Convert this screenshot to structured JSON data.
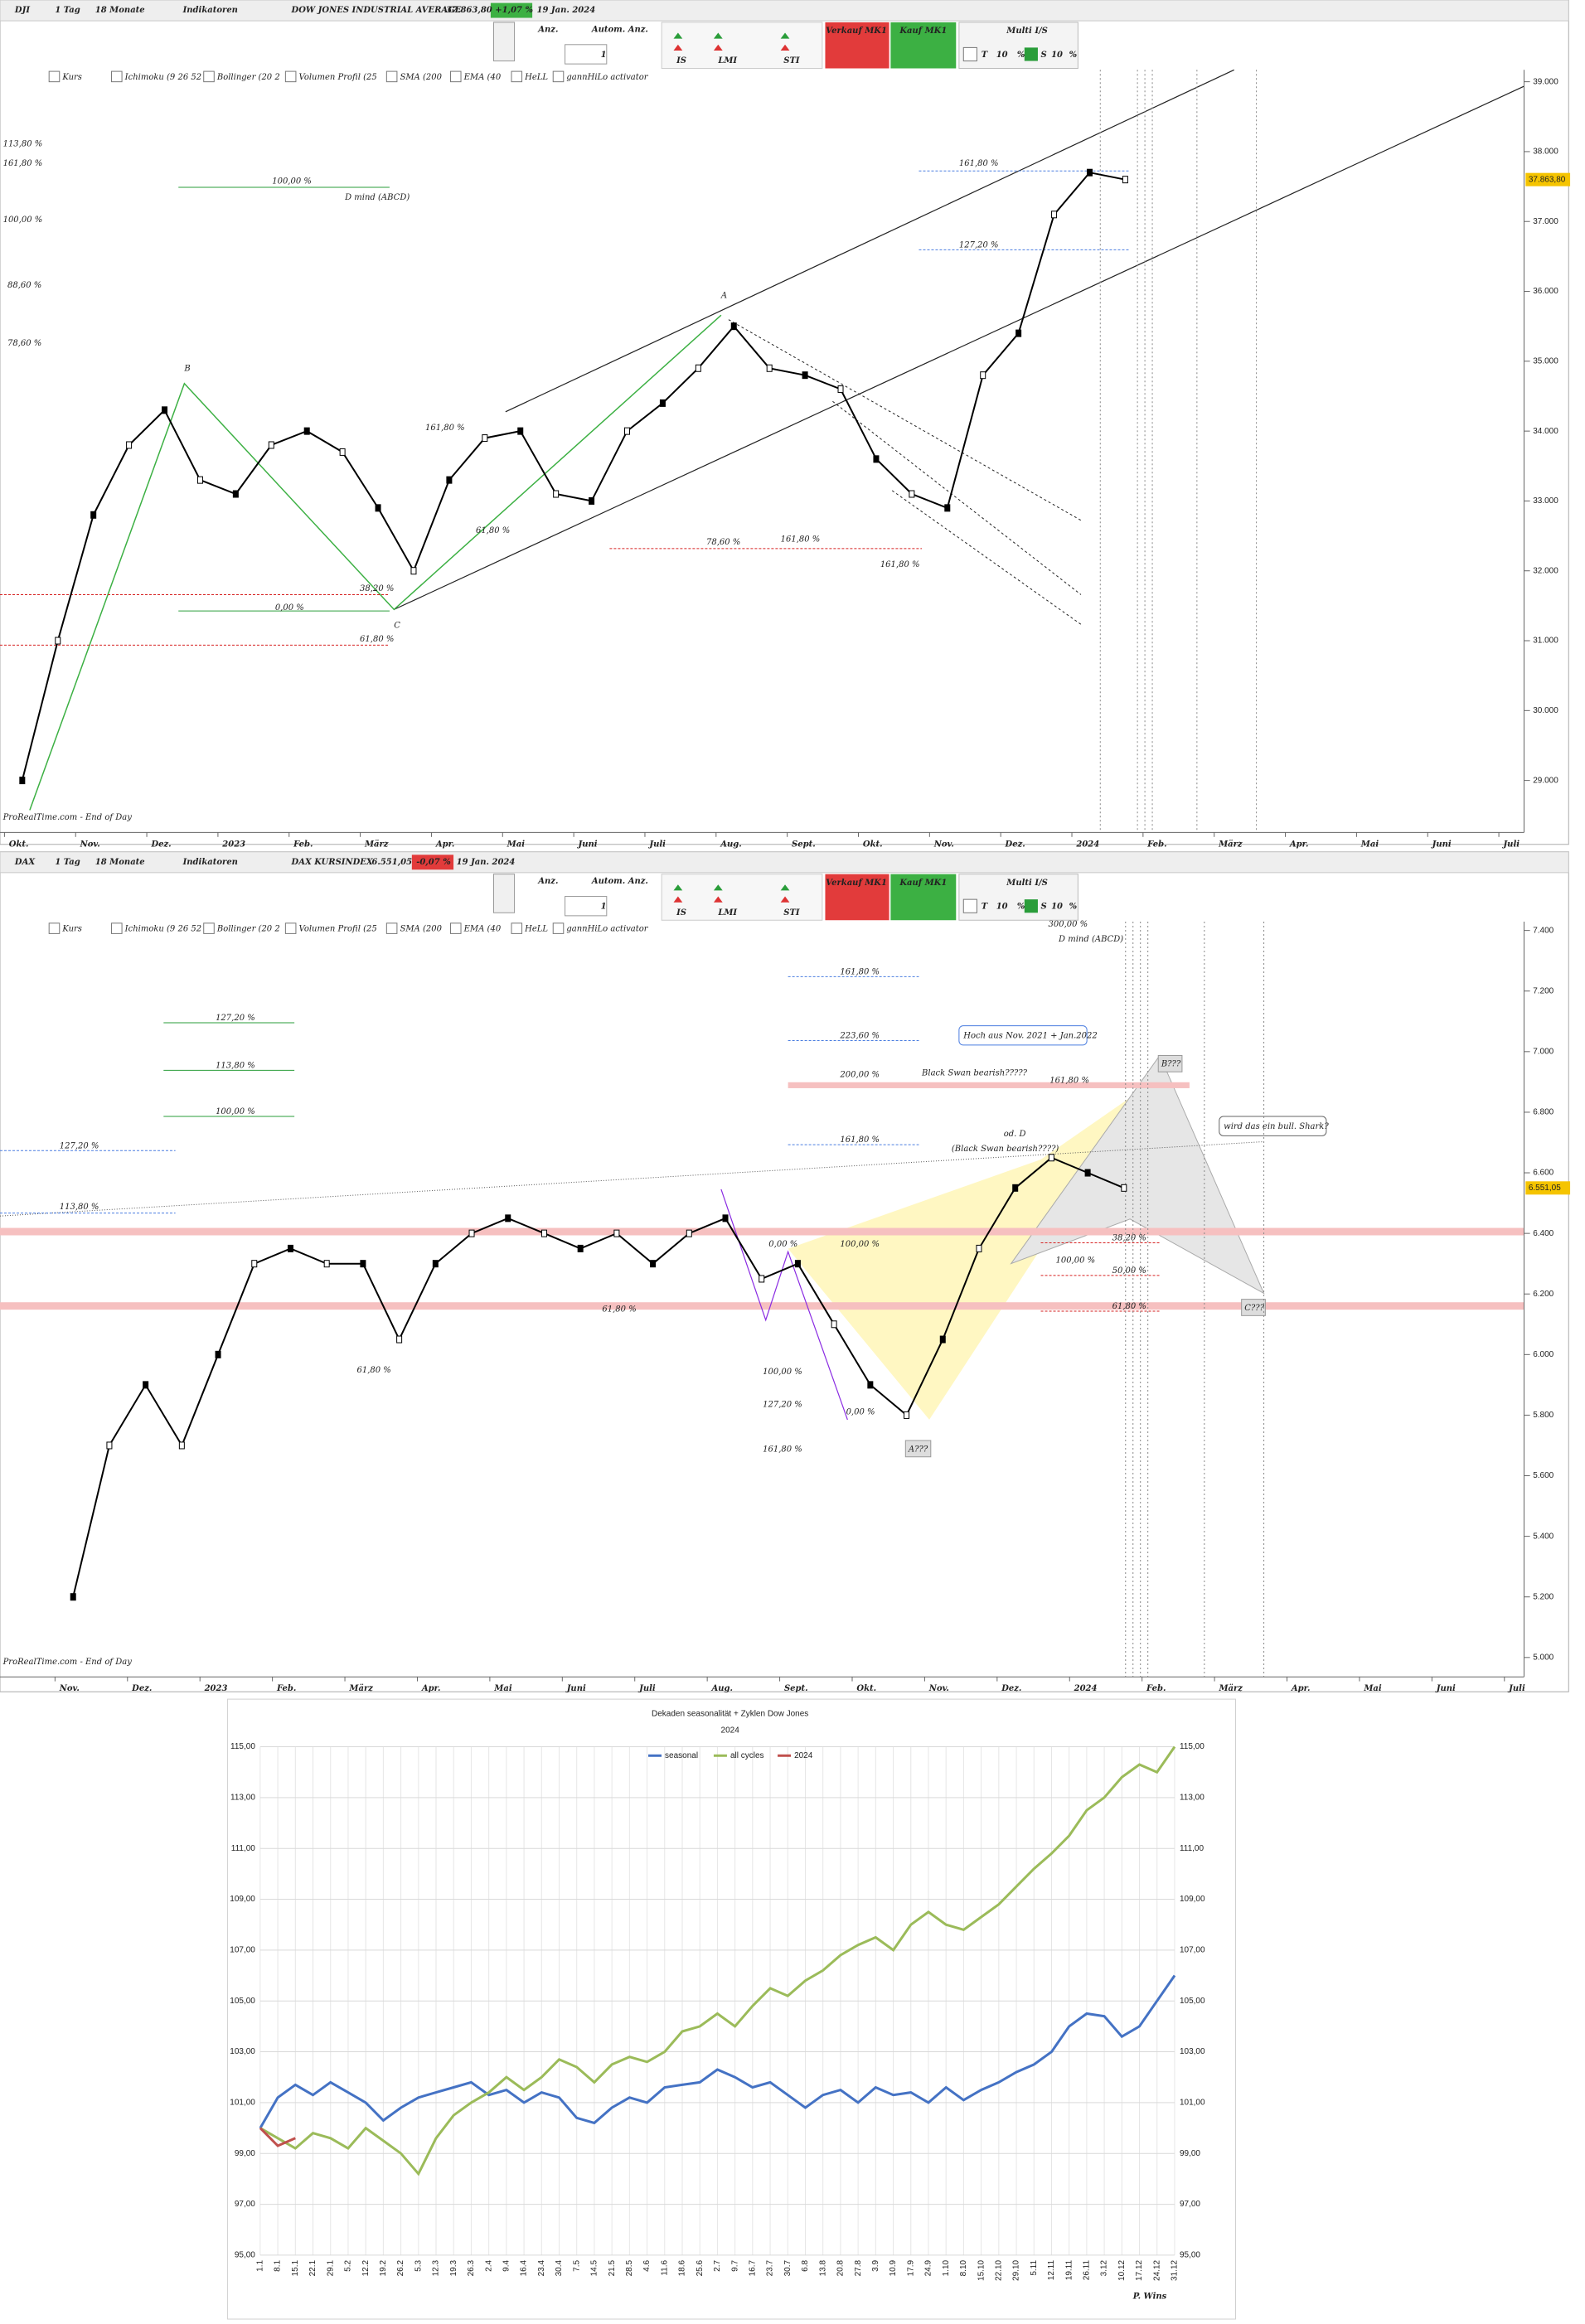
{
  "chart_data": [
    {
      "type": "line",
      "toolbar": {
        "symbol": "DJI",
        "period": "1 Tag",
        "range": "18 Monate",
        "indicators_button": "Indikatoren",
        "instrument": "DOW JONES INDUSTRIAL AVERAGE",
        "last": "37.863,80",
        "change": "+1,07 %",
        "date": "19 Jan. 2024",
        "controls": [
          "Anz.",
          "Autom. Anz.",
          "1",
          "IS",
          "LMI",
          "STI"
        ],
        "sell": "Verkauf MK1",
        "buy": "Kauf MK1",
        "multi": "Multi I/S",
        "t": "T",
        "t_value": "10",
        "s": "S",
        "s_value": "10",
        "percent": "%"
      },
      "indicators": [
        "Kurs",
        "Ichimoku (9 26 52",
        "Bollinger (20 2",
        "Volumen Profil (25",
        "SMA (200",
        "EMA (40",
        "HeLL",
        "gannHiLo activator"
      ],
      "price_tag": "37.863,80",
      "watermark": "ProRealTime.com - End of Day",
      "annotations": [
        "113,80 %",
        "161,80 %",
        "100,00 %",
        "88,60 %",
        "78,60 %",
        "100,00 %",
        "D mind (ABCD)",
        "161,80 %",
        "0,00 %",
        "38,20 %",
        "61,80 %",
        "61,80 %",
        "78,60 %",
        "161,80 %",
        "161,80 %",
        "127,20 %",
        "161,80 %",
        "B",
        "C",
        "A"
      ],
      "categories": [
        "Okt.",
        null,
        "Nov.",
        null,
        "Dez.",
        null,
        "2023",
        null,
        "Feb.",
        null,
        "März",
        null,
        "Apr.",
        null,
        "Mai",
        null,
        "Juni",
        null,
        "Juli",
        null,
        "Aug.",
        null,
        "Sept.",
        null,
        "Okt.",
        null,
        "Nov.",
        null,
        "Dez.",
        null,
        "2024",
        null,
        "Feb.",
        null,
        "März",
        null,
        "Apr.",
        null,
        "Mai",
        null,
        "Juni",
        null,
        "Juli",
        null
      ],
      "values": [
        29000,
        31000,
        32800,
        33800,
        34300,
        33300,
        33100,
        33800,
        34000,
        33700,
        32900,
        32000,
        33300,
        33900,
        34000,
        33100,
        33000,
        34000,
        34400,
        34900,
        35500,
        34900,
        34800,
        34600,
        33600,
        33100,
        32900,
        34800,
        35400,
        37100,
        37700,
        37600,
        null,
        null,
        null,
        null,
        null,
        null,
        null,
        null,
        null,
        null,
        null,
        null
      ],
      "color": "#000000",
      "ylim": [
        28255,
        39170
      ],
      "yticks": [
        {
          "value": 29000,
          "label": "29.000"
        },
        {
          "value": 30000,
          "label": "30.000"
        },
        {
          "value": 31000,
          "label": "31.000"
        },
        {
          "value": 32000,
          "label": "32.000"
        },
        {
          "value": 33000,
          "label": "33.000"
        },
        {
          "value": 34000,
          "label": "34.000"
        },
        {
          "value": 35000,
          "label": "35.000"
        },
        {
          "value": 36000,
          "label": "36.000"
        },
        {
          "value": 37000,
          "label": "37.000"
        },
        {
          "value": 38000,
          "label": "38.000"
        },
        {
          "value": 39000,
          "label": "39.000"
        }
      ]
    },
    {
      "type": "line",
      "toolbar": {
        "symbol": "DAX",
        "period": "1 Tag",
        "range": "18 Monate",
        "indicators_button": "Indikatoren",
        "instrument": "DAX KURSINDEX",
        "last": "6.551,05",
        "change": "-0,07 %",
        "date": "19 Jan. 2024",
        "controls": [
          "Anz.",
          "Autom. Anz.",
          "1",
          "IS",
          "LMI",
          "STI"
        ],
        "sell": "Verkauf MK1",
        "buy": "Kauf MK1",
        "multi": "Multi I/S",
        "t": "T",
        "t_value": "10",
        "s": "S",
        "s_value": "10",
        "percent": "%"
      },
      "indicators": [
        "Kurs",
        "Ichimoku (9 26 52",
        "Bollinger (20 2",
        "Volumen Profil (25",
        "SMA (200",
        "EMA (40",
        "HeLL",
        "gannHiLo activator"
      ],
      "price_tag": "6.551,05",
      "watermark": "ProRealTime.com - End of Day",
      "annotations": [
        "161,80 %",
        "223,60 %",
        "200,00 %",
        "161,80 %",
        "127,20 %",
        "113,80 %",
        "100,00 %",
        "127,20 %",
        "113,80 %",
        "Hoch aus Nov. 2021 + Jan.2022",
        "Black Swan bearish?????",
        "161,80 %",
        "od. D",
        "(Black Swan bearish????)",
        "wird das ein bull. Shark?",
        "B???",
        "C???",
        "A???",
        "38,20 %",
        "50,00 %",
        "61,80 %",
        "100,00 %",
        "100,00 %",
        "0,00 %",
        "61,80 %",
        "61,80 %",
        "100,00 %",
        "127,20 %",
        "161,80 %",
        "0,00 %",
        "300,00 %",
        "D mind (ABCD)"
      ],
      "categories": [
        "Nov.",
        null,
        "Dez.",
        null,
        "2023",
        null,
        "Feb.",
        null,
        "März",
        null,
        "Apr.",
        null,
        "Mai",
        null,
        "Juni",
        null,
        "Juli",
        null,
        "Aug.",
        null,
        "Sept.",
        null,
        "Okt.",
        null,
        "Nov.",
        null,
        "Dez.",
        null,
        "2024",
        null,
        "Feb.",
        null,
        "März",
        null,
        "Apr.",
        null,
        "Mai",
        null,
        "Juni",
        null,
        "Juli",
        null
      ],
      "values": [
        5200,
        5700,
        5900,
        5700,
        6000,
        6300,
        6350,
        6300,
        6300,
        6050,
        6300,
        6400,
        6450,
        6400,
        6350,
        6400,
        6300,
        6400,
        6450,
        6250,
        6300,
        6100,
        5900,
        5800,
        6050,
        6350,
        6550,
        6650,
        6600,
        6550,
        null,
        null,
        null,
        null,
        null,
        null,
        null,
        null,
        null,
        null,
        null,
        null
      ],
      "color": "#000000",
      "ylim": [
        4936,
        7429
      ],
      "yticks": [
        {
          "value": 5000,
          "label": "5.000"
        },
        {
          "value": 5200,
          "label": "5.200"
        },
        {
          "value": 5400,
          "label": "5.400"
        },
        {
          "value": 5600,
          "label": "5.600"
        },
        {
          "value": 5800,
          "label": "5.800"
        },
        {
          "value": 6000,
          "label": "6.000"
        },
        {
          "value": 6200,
          "label": "6.200"
        },
        {
          "value": 6400,
          "label": "6.400"
        },
        {
          "value": 6600,
          "label": "6.600"
        },
        {
          "value": 6800,
          "label": "6.800"
        },
        {
          "value": 7000,
          "label": "7.000"
        },
        {
          "value": 7200,
          "label": "7.200"
        },
        {
          "value": 7400,
          "label": "7.400"
        }
      ]
    },
    {
      "type": "line",
      "title": "Dekaden seasonalität + Zyklen Dow Jones",
      "subtitle": "2024",
      "footer": "P. Wins",
      "legend": "top",
      "grid": true,
      "categories": [
        "1.1",
        "8.1",
        "15.1",
        "22.1",
        "29.1",
        "5.2",
        "12.2",
        "19.2",
        "26.2",
        "5.3",
        "12.3",
        "19.3",
        "26.3",
        "2.4",
        "9.4",
        "16.4",
        "23.4",
        "30.4",
        "7.5",
        "14.5",
        "21.5",
        "28.5",
        "4.6",
        "11.6",
        "18.6",
        "25.6",
        "2.7",
        "9.7",
        "16.7",
        "23.7",
        "30.7",
        "6.8",
        "13.8",
        "20.8",
        "27.8",
        "3.9",
        "10.9",
        "17.9",
        "24.9",
        "1.10",
        "8.10",
        "15.10",
        "22.10",
        "29.10",
        "5.11",
        "12.11",
        "19.11",
        "26.11",
        "3.12",
        "10.12",
        "17.12",
        "24.12",
        "31.12"
      ],
      "series": [
        {
          "name": "seasonal",
          "color": "#4472c4",
          "values": [
            100,
            101.2,
            101.7,
            101.3,
            101.8,
            101.4,
            101.0,
            100.3,
            100.8,
            101.2,
            101.4,
            101.6,
            101.8,
            101.3,
            101.5,
            101.0,
            101.4,
            101.2,
            100.4,
            100.2,
            100.8,
            101.2,
            101.0,
            101.6,
            101.7,
            101.8,
            102.3,
            102.0,
            101.6,
            101.8,
            101.3,
            100.8,
            101.3,
            101.5,
            101.0,
            101.6,
            101.3,
            101.4,
            101.0,
            101.6,
            101.1,
            101.5,
            101.8,
            102.2,
            102.5,
            103.0,
            104.0,
            104.5,
            104.4,
            103.6,
            104.0,
            105.0,
            106.0
          ]
        },
        {
          "name": "all cycles",
          "color": "#9bbb59",
          "values": [
            100.0,
            99.6,
            99.2,
            99.8,
            99.6,
            99.2,
            100.0,
            99.5,
            99.0,
            98.2,
            99.6,
            100.5,
            101.0,
            101.4,
            102.0,
            101.5,
            102.0,
            102.7,
            102.4,
            101.8,
            102.5,
            102.8,
            102.6,
            103.0,
            103.8,
            104.0,
            104.5,
            104.0,
            104.8,
            105.5,
            105.2,
            105.8,
            106.2,
            106.8,
            107.2,
            107.5,
            107.0,
            108.0,
            108.5,
            108.0,
            107.8,
            108.3,
            108.8,
            109.5,
            110.2,
            110.8,
            111.5,
            112.5,
            113.0,
            113.8,
            114.3,
            114.0,
            115.0
          ]
        },
        {
          "name": "2024",
          "color": "#c0504d",
          "values": [
            100,
            99.3,
            99.6,
            null,
            null,
            null,
            null,
            null,
            null,
            null,
            null,
            null,
            null,
            null,
            null,
            null,
            null,
            null,
            null,
            null,
            null,
            null,
            null,
            null,
            null,
            null,
            null,
            null,
            null,
            null,
            null,
            null,
            null,
            null,
            null,
            null,
            null,
            null,
            null,
            null,
            null,
            null,
            null,
            null,
            null,
            null,
            null,
            null,
            null,
            null,
            null,
            null,
            null
          ]
        }
      ],
      "ylim": [
        95,
        115
      ],
      "yticks": [
        {
          "value": 95,
          "label": "95,00"
        },
        {
          "value": 97,
          "label": "97,00"
        },
        {
          "value": 99,
          "label": "99,00"
        },
        {
          "value": 101,
          "label": "101,00"
        },
        {
          "value": 103,
          "label": "103,00"
        },
        {
          "value": 105,
          "label": "105,00"
        },
        {
          "value": 107,
          "label": "107,00"
        },
        {
          "value": 109,
          "label": "109,00"
        },
        {
          "value": 111,
          "label": "111,00"
        },
        {
          "value": 113,
          "label": "113,00"
        },
        {
          "value": 115,
          "label": "115,00"
        }
      ]
    }
  ]
}
